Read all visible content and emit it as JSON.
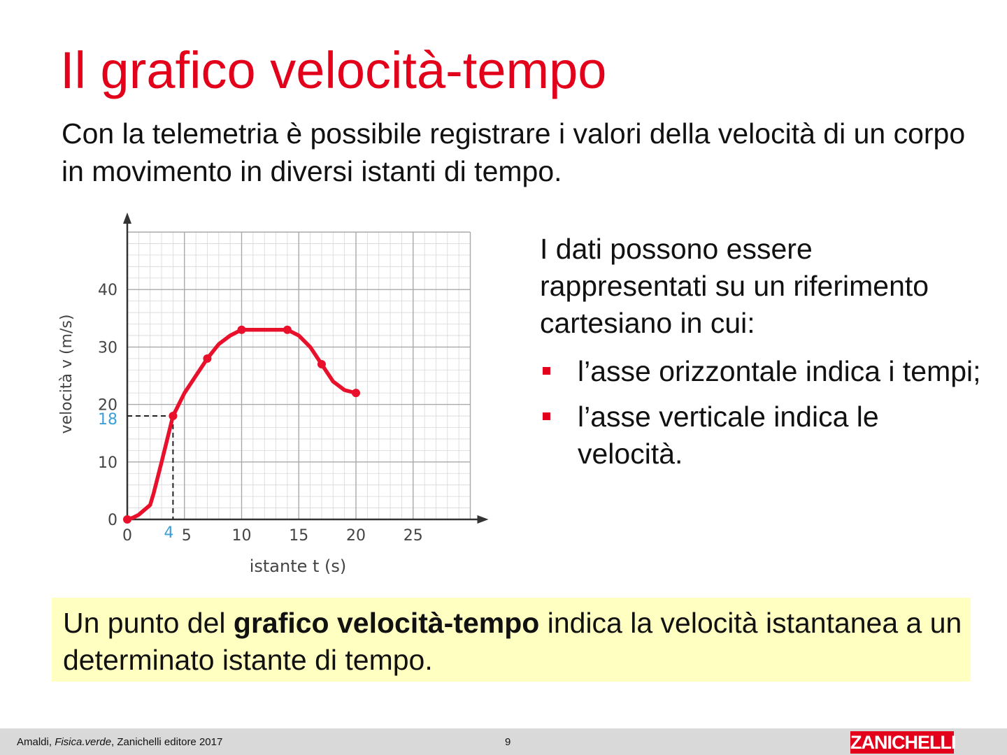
{
  "slide": {
    "title": "Il grafico velocità-tempo",
    "intro": "Con la telemetria è possibile registrare i valori della velocità di un corpo in movimento in diversi istanti di tempo.",
    "side_text": "I dati possono essere rappresentati su un riferimento cartesiano in cui:",
    "bullets": [
      "l’asse orizzontale indica i tempi;",
      "l’asse verticale indica le velocità."
    ],
    "callout": {
      "before": "Un punto del ",
      "bold": "grafico velocità-tempo",
      "after": " indica la velocità istantanea a un determinato istante di tempo."
    }
  },
  "footer": {
    "author": "Amaldi, ",
    "book": "Fisica.verde",
    "publisher": ",  Zanichelli editore 2017",
    "page": "9",
    "logo": "ZANICHELLI"
  },
  "colors": {
    "title": "#e3001b",
    "curve": "#e8102a",
    "highlight": "#3b9fd8",
    "callout_bg": "#ffffc2",
    "footer_bg": "#d9d9d9"
  },
  "chart_data": {
    "type": "line",
    "xlabel": "istante t (s)",
    "ylabel": "velocità v (m/s)",
    "xlim": [
      0,
      30
    ],
    "ylim": [
      0,
      50
    ],
    "x_ticks": [
      0,
      5,
      10,
      15,
      20,
      25
    ],
    "y_ticks": [
      0,
      10,
      20,
      30,
      40
    ],
    "grid": true,
    "series": [
      {
        "points": [
          [
            0,
            0
          ],
          [
            0.5,
            0.3
          ],
          [
            1,
            0.8
          ],
          [
            2,
            2.5
          ],
          [
            2.3,
            4.5
          ],
          [
            3,
            10
          ],
          [
            4,
            18
          ],
          [
            5,
            22
          ],
          [
            6,
            25
          ],
          [
            7,
            28
          ],
          [
            8,
            30.5
          ],
          [
            9,
            32
          ],
          [
            10,
            33
          ],
          [
            12,
            33
          ],
          [
            14,
            33
          ],
          [
            15,
            32
          ],
          [
            16,
            30
          ],
          [
            17,
            27
          ],
          [
            18,
            24
          ],
          [
            19,
            22.5
          ],
          [
            20,
            22
          ]
        ],
        "markers": [
          [
            0,
            0
          ],
          [
            4,
            18
          ],
          [
            7,
            28
          ],
          [
            10,
            33
          ],
          [
            14,
            33
          ],
          [
            17,
            27
          ],
          [
            20,
            22
          ]
        ]
      }
    ],
    "highlight": {
      "x": 4,
      "y": 18,
      "x_label": "4",
      "y_label": "18"
    }
  }
}
